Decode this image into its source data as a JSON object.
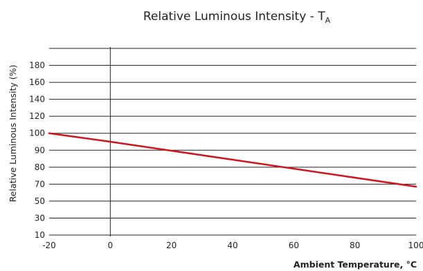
{
  "chart_data": {
    "type": "line",
    "title": "Relative Luminous Intensity - T",
    "title_subscript": "A",
    "xlabel": "Ambient Temperature, °C",
    "ylabel": "Relative Luminous Intensity (%)",
    "x_ticks": [
      -20,
      0,
      20,
      40,
      60,
      80,
      100
    ],
    "x_tick_labels": [
      "-20",
      "0",
      "20",
      "40",
      "60",
      "80",
      "100"
    ],
    "y_tick_labels": [
      "10",
      "30",
      "50",
      "70",
      "80",
      "90",
      "100",
      "120",
      "140",
      "160",
      "180"
    ],
    "xlim": [
      -20,
      100
    ],
    "vertical_reference_x": 0,
    "grid": "horizontal",
    "series": [
      {
        "color": "#d0141c",
        "x": [
          -20,
          0,
          100
        ],
        "y": [
          100,
          95,
          67
        ]
      }
    ]
  }
}
